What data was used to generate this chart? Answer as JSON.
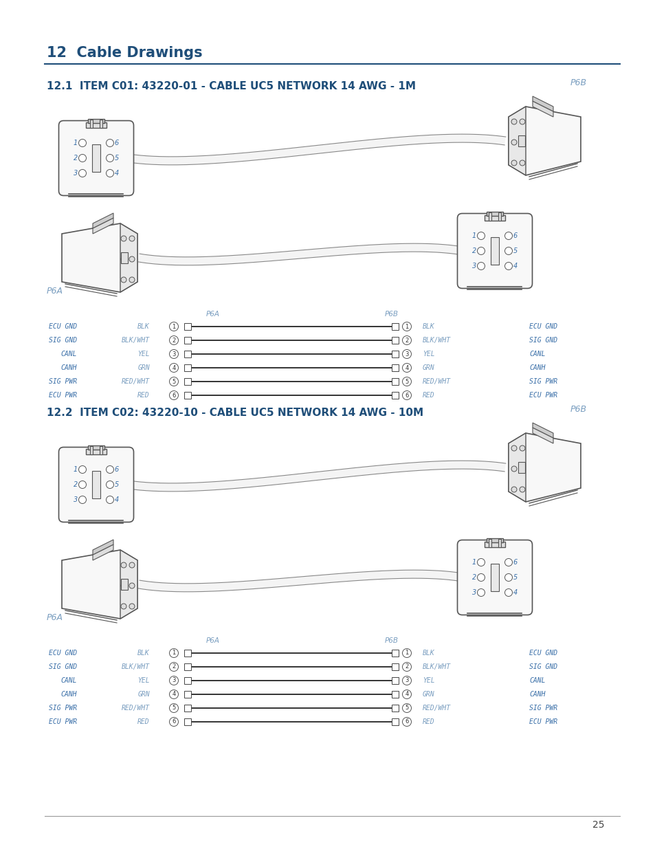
{
  "title_section": "12  Cable Drawings",
  "title_color": "#1F4E79",
  "bg_color": "#ffffff",
  "section1_title": "12.1  ITEM C01: 43220-01 - CABLE UC5 NETWORK 14 AWG - 1M",
  "section2_title": "12.2  ITEM C02: 43220-10 - CABLE UC5 NETWORK 14 AWG - 10M",
  "wiring_rows": [
    {
      "left_label": "ECU GND",
      "left_color": "BLK",
      "pin": "1",
      "right_color": "BLK",
      "right_label": "ECU GND"
    },
    {
      "left_label": "SIG GND",
      "left_color": "BLK/WHT",
      "pin": "2",
      "right_color": "BLK/WHT",
      "right_label": "SIG GND"
    },
    {
      "left_label": "CANL",
      "left_color": "YEL",
      "pin": "3",
      "right_color": "YEL",
      "right_label": "CANL"
    },
    {
      "left_label": "CANH",
      "left_color": "GRN",
      "pin": "4",
      "right_color": "GRN",
      "right_label": "CANH"
    },
    {
      "left_label": "SIG PWR",
      "left_color": "RED/WHT",
      "pin": "5",
      "right_color": "RED/WHT",
      "right_label": "SIG PWR"
    },
    {
      "left_label": "ECU PWR",
      "left_color": "RED",
      "pin": "6",
      "right_color": "RED",
      "right_label": "ECU PWR"
    }
  ],
  "p6a_label": "P6A",
  "p6b_label": "P6B",
  "page_number": "25",
  "connector_edge_color": "#555555",
  "connector_face_color": "#f8f8f8",
  "label_color_blue": "#3A6FA8",
  "label_color_gray": "#7A9EC0",
  "wire_color": "#111111",
  "cable_outline_color": "#999999"
}
